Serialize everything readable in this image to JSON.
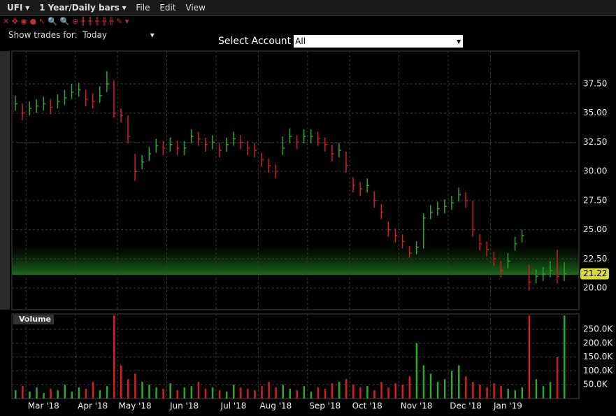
{
  "toolbar": {
    "symbol": "UFI",
    "period": "1 Year/Daily bars",
    "menu": [
      "File",
      "Edit",
      "View"
    ],
    "show_trades_label": "Show trades for:",
    "show_trades_value": "Today",
    "account_label": "Select Account",
    "account_value": "All"
  },
  "chart_data": [
    {
      "type": "ohlc",
      "up_color": "#2ca82c",
      "down_color": "#d42020",
      "grid": true,
      "ylim": [
        18.14,
        40.32
      ],
      "yticks": [
        {
          "value": 20,
          "label": "20.00"
        },
        {
          "value": 22.5,
          "label": "22.50"
        },
        {
          "value": 25,
          "label": "25.00"
        },
        {
          "value": 27.5,
          "label": "27.50"
        },
        {
          "value": 30,
          "label": "30.00"
        },
        {
          "value": 32.5,
          "label": "32.50"
        },
        {
          "value": 35,
          "label": "35.00"
        },
        {
          "value": 37.5,
          "label": "37.50"
        }
      ],
      "high": [
        36.5,
        35.8,
        36.0,
        36.2,
        36.4,
        36.2,
        36.6,
        37.0,
        37.5,
        37.6,
        37.0,
        36.7,
        37.3,
        38.6,
        37.8,
        35.4,
        34.8,
        31.5,
        31.4,
        32.1,
        32.8,
        32.6,
        32.9,
        32.6,
        32.6,
        33.6,
        33.4,
        32.9,
        33.1,
        32.4,
        32.9,
        33.4,
        33.1,
        32.6,
        32.4,
        31.6,
        31.1,
        30.6,
        33.0,
        33.7,
        33.1,
        33.6,
        33.6,
        33.4,
        32.9,
        32.3,
        32.4,
        31.7,
        29.5,
        29.1,
        29.4,
        28.3,
        27.2,
        25.7,
        25.1,
        24.6,
        23.6,
        24.0,
        26.4,
        27.1,
        27.4,
        27.6,
        27.9,
        28.6,
        28.2,
        27.5,
        24.6,
        24.0,
        23.1,
        22.3,
        23.0,
        24.4,
        25.0,
        22.0,
        21.6,
        21.8,
        22.3,
        23.3,
        22.2
      ],
      "low": [
        35.2,
        34.4,
        34.8,
        35.0,
        35.2,
        34.9,
        35.4,
        35.7,
        36.2,
        36.4,
        35.6,
        35.4,
        35.9,
        36.8,
        34.6,
        34.2,
        32.4,
        29.2,
        30.2,
        30.9,
        31.6,
        31.4,
        31.7,
        31.4,
        31.4,
        32.4,
        32.2,
        31.7,
        31.9,
        31.2,
        31.7,
        32.2,
        31.9,
        31.4,
        31.2,
        30.4,
        29.9,
        29.4,
        31.4,
        32.4,
        31.9,
        32.4,
        32.4,
        32.2,
        31.7,
        30.9,
        31.2,
        29.9,
        28.2,
        27.9,
        28.2,
        26.9,
        25.9,
        24.4,
        23.9,
        23.4,
        22.6,
        22.9,
        23.4,
        25.9,
        26.2,
        26.4,
        26.7,
        27.4,
        26.9,
        24.4,
        23.2,
        22.7,
        21.9,
        20.9,
        21.7,
        23.2,
        23.9,
        19.8,
        20.4,
        20.6,
        20.9,
        20.4,
        20.6
      ],
      "close": [
        35.8,
        35.0,
        35.4,
        35.6,
        35.8,
        35.5,
        36.0,
        36.3,
        36.8,
        37.0,
        36.2,
        36.0,
        36.5,
        37.5,
        35.0,
        34.8,
        33.0,
        30.0,
        30.8,
        31.5,
        32.2,
        32.0,
        32.3,
        32.0,
        32.0,
        33.0,
        32.8,
        32.3,
        32.5,
        31.8,
        32.3,
        32.8,
        32.5,
        32.0,
        31.8,
        31.0,
        30.5,
        30.0,
        32.0,
        33.0,
        32.5,
        33.0,
        33.0,
        32.8,
        32.3,
        31.5,
        31.8,
        30.5,
        28.8,
        28.5,
        28.8,
        27.5,
        26.5,
        25.0,
        24.5,
        24.0,
        23.0,
        23.5,
        26.0,
        26.5,
        26.8,
        27.0,
        27.3,
        28.0,
        27.5,
        25.0,
        23.8,
        23.3,
        22.5,
        21.5,
        22.3,
        23.8,
        24.5,
        20.5,
        21.0,
        21.2,
        21.5,
        21.0,
        21.22
      ]
    },
    {
      "type": "bar",
      "title": "Volume",
      "grid": true,
      "categories": [
        null,
        null,
        null,
        null,
        "Mar '18",
        null,
        null,
        null,
        null,
        null,
        null,
        "Apr '18",
        null,
        null,
        null,
        null,
        null,
        "May '18",
        null,
        null,
        null,
        null,
        null,
        null,
        "Jun '18",
        null,
        null,
        null,
        null,
        null,
        null,
        "Jul '18",
        null,
        null,
        null,
        null,
        null,
        "Aug '18",
        null,
        null,
        null,
        null,
        null,
        null,
        "Sep '18",
        null,
        null,
        null,
        null,
        null,
        "Oct '18",
        null,
        null,
        null,
        null,
        null,
        null,
        "Nov '18",
        null,
        null,
        null,
        null,
        null,
        null,
        "Dec '18",
        null,
        null,
        null,
        null,
        null,
        "Jan '19",
        null,
        null,
        null,
        null,
        null,
        null,
        null,
        null
      ],
      "values": [
        30000,
        45000,
        25000,
        40000,
        20000,
        35000,
        30000,
        50000,
        25000,
        40000,
        35000,
        60000,
        30000,
        45000,
        300000,
        120000,
        70000,
        90000,
        60000,
        50000,
        40000,
        35000,
        55000,
        30000,
        40000,
        45000,
        60000,
        35000,
        40000,
        30000,
        25000,
        50000,
        40000,
        35000,
        30000,
        45000,
        60000,
        40000,
        50000,
        35000,
        30000,
        45000,
        25000,
        40000,
        35000,
        55000,
        60000,
        70000,
        50000,
        40000,
        45000,
        30000,
        60000,
        40000,
        55000,
        50000,
        80000,
        200000,
        120000,
        90000,
        60000,
        70000,
        100000,
        120000,
        80000,
        60000,
        50000,
        40000,
        55000,
        45000,
        35000,
        30000,
        40000,
        300000,
        70000,
        45000,
        60000,
        150000,
        300000
      ],
      "ylim": [
        0,
        305700
      ],
      "yticks": [
        {
          "value": 50000,
          "label": "50.0K"
        },
        {
          "value": 100000,
          "label": "100.0K"
        },
        {
          "value": 150000,
          "label": "150.0K"
        },
        {
          "value": 200000,
          "label": "200.0K"
        },
        {
          "value": 250000,
          "label": "250.0K"
        }
      ]
    }
  ]
}
